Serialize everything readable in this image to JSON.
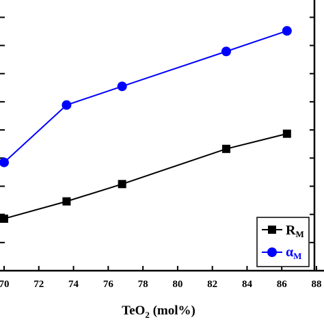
{
  "chart_data": {
    "type": "line",
    "xlabel": {
      "base": "TeO",
      "subscript": "2",
      "suffix": " (mol%)"
    },
    "xlim": [
      70,
      88
    ],
    "x_tick_labels": [
      "70",
      "72",
      "74",
      "76",
      "78",
      "80",
      "82",
      "84",
      "86",
      "88"
    ],
    "x_ticks": [
      70,
      72,
      74,
      76,
      78,
      80,
      82,
      84,
      86,
      88
    ],
    "left_axis": {
      "ylim": [
        0,
        1
      ],
      "tick_values": [
        0.0,
        0.104,
        0.208,
        0.312,
        0.416,
        0.52,
        0.624,
        0.728,
        0.832,
        0.936
      ],
      "tick_labels_visible": false
    },
    "right_axis": {
      "tick_labels_visible": false
    },
    "legend_position": "bottom-right",
    "grid": false,
    "series": [
      {
        "name": "R",
        "name_subscript": "M",
        "marker": "square",
        "color": "#000000",
        "x": [
          70.0,
          73.6,
          76.8,
          82.8,
          86.3
        ],
        "y": [
          0.192,
          0.256,
          0.32,
          0.45,
          0.506
        ]
      },
      {
        "name": "α",
        "name_subscript": "M",
        "marker": "circle",
        "color": "#0000ff",
        "x": [
          70.0,
          73.6,
          76.8,
          82.8,
          86.3
        ],
        "y": [
          0.4,
          0.612,
          0.681,
          0.81,
          0.886
        ]
      }
    ]
  }
}
